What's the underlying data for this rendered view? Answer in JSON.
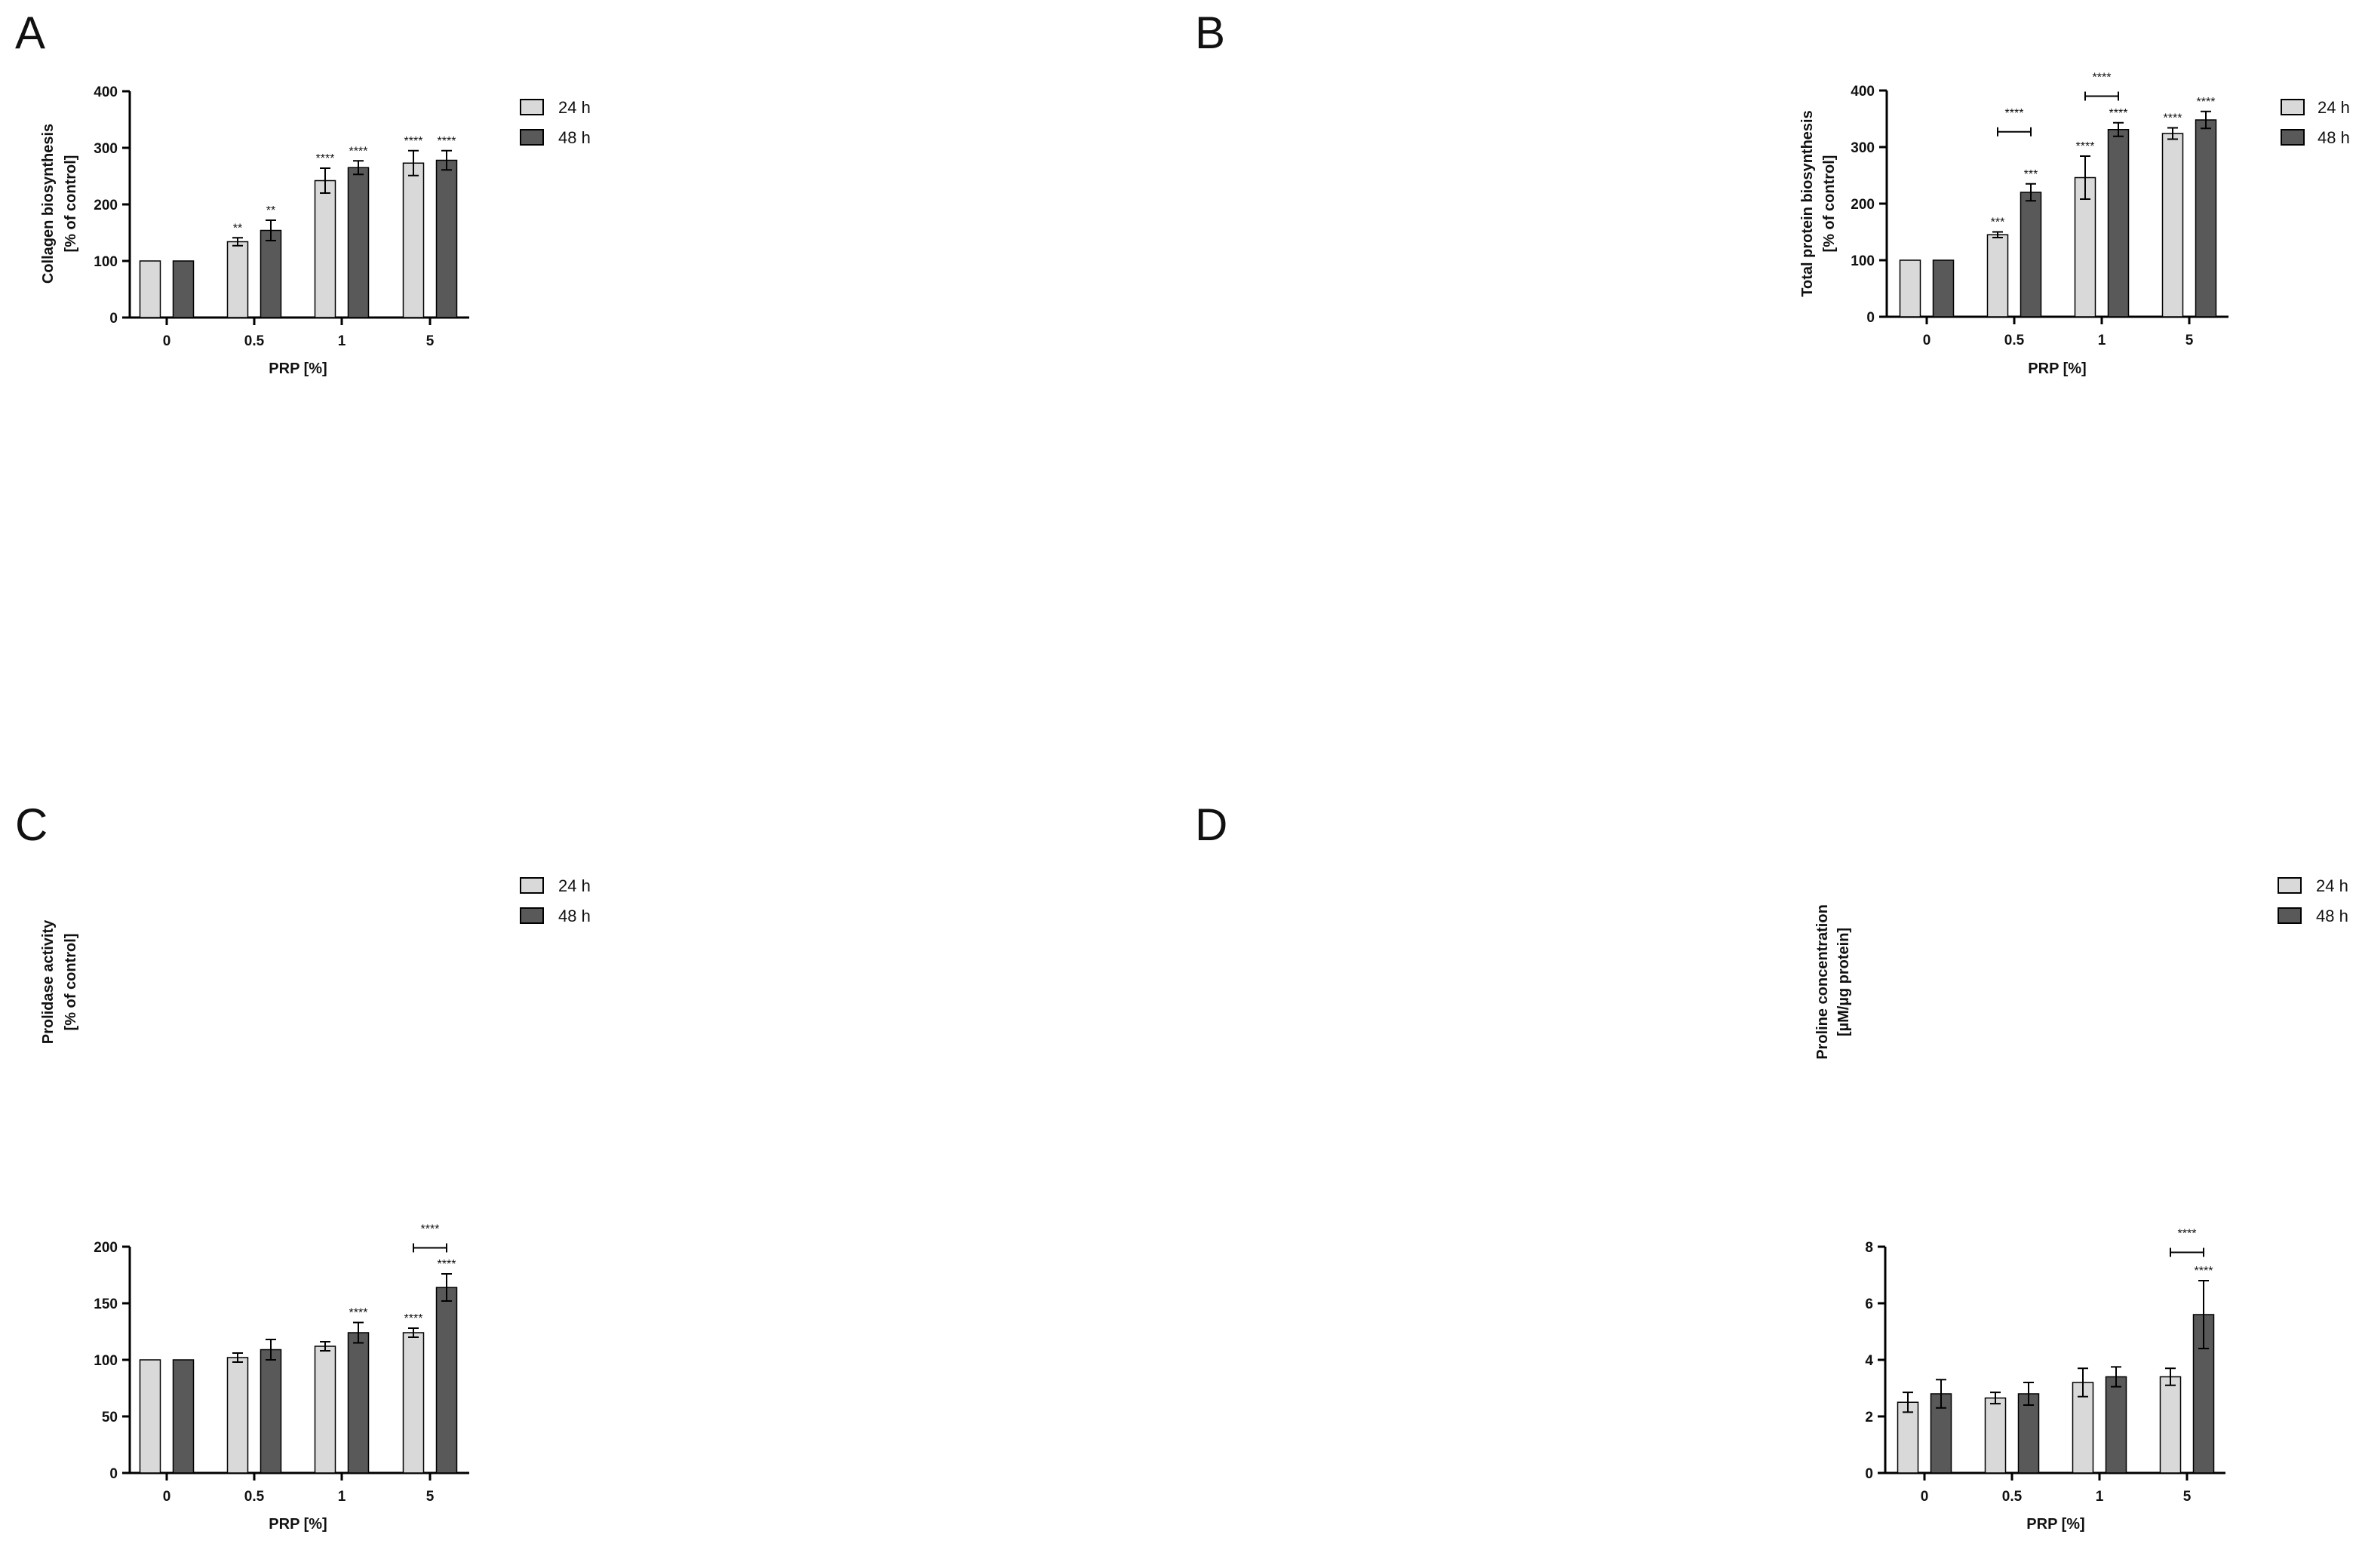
{
  "colors": {
    "h24": "#d9d9d9",
    "h48": "#595959",
    "axis": "#000000"
  },
  "legend": {
    "h24": "24 h",
    "h48": "48 h"
  },
  "chart_data": [
    {
      "panel": "A",
      "type": "bar",
      "title": "",
      "xlabel": "PRP [%]",
      "ylabel_lines": [
        "Collagen biosynthesis",
        "[% of control]"
      ],
      "categories": [
        "0",
        "0.5",
        "1",
        "5"
      ],
      "ylim": [
        0,
        400
      ],
      "yticks": [
        "0",
        "100",
        "200",
        "300",
        "400"
      ],
      "series": [
        {
          "name": "24 h",
          "values": [
            100,
            134,
            242,
            273
          ],
          "errors": [
            0,
            7,
            22,
            22
          ],
          "sig": [
            "",
            "**",
            "****",
            "****"
          ]
        },
        {
          "name": "48 h",
          "values": [
            100,
            154,
            265,
            278
          ],
          "errors": [
            0,
            18,
            12,
            17
          ],
          "sig": [
            "",
            "**",
            "****",
            "****"
          ]
        }
      ],
      "brackets": []
    },
    {
      "panel": "B",
      "type": "bar",
      "title": "",
      "xlabel": "PRP [%]",
      "ylabel_lines": [
        "Total protein biosynthesis",
        "[% of control]"
      ],
      "categories": [
        "0",
        "0.5",
        "1",
        "5"
      ],
      "ylim": [
        0,
        400
      ],
      "yticks": [
        "0",
        "100",
        "200",
        "300",
        "400"
      ],
      "series": [
        {
          "name": "24 h",
          "values": [
            100,
            145,
            246,
            324
          ],
          "errors": [
            0,
            5,
            38,
            10
          ],
          "sig": [
            "",
            "***",
            "****",
            "****"
          ]
        },
        {
          "name": "48 h",
          "values": [
            100,
            220,
            331,
            348
          ],
          "errors": [
            0,
            15,
            12,
            15
          ],
          "sig": [
            "",
            "***",
            "****",
            "****"
          ]
        }
      ],
      "brackets": [
        {
          "category": 1,
          "label": "****",
          "y": 327
        },
        {
          "category": 2,
          "label": "****",
          "y": 390
        }
      ]
    },
    {
      "panel": "C",
      "type": "bar",
      "title": "",
      "xlabel": "PRP [%]",
      "ylabel_lines": [
        "Prolidase activity",
        "[% of control]"
      ],
      "categories": [
        "0",
        "0.5",
        "1",
        "5"
      ],
      "ylim": [
        0,
        200
      ],
      "yticks": [
        "0",
        "50",
        "100",
        "150",
        "200"
      ],
      "series": [
        {
          "name": "24 h",
          "values": [
            100,
            102,
            112,
            124
          ],
          "errors": [
            0,
            4,
            4,
            4
          ],
          "sig": [
            "",
            "",
            "",
            "****"
          ]
        },
        {
          "name": "48 h",
          "values": [
            100,
            109,
            124,
            164
          ],
          "errors": [
            0,
            9,
            9,
            12
          ],
          "sig": [
            "",
            "",
            "****",
            "****"
          ]
        }
      ],
      "brackets": [
        {
          "category": 3,
          "label": "****",
          "y": 199
        }
      ]
    },
    {
      "panel": "D",
      "type": "bar",
      "title": "",
      "xlabel": "PRP [%]",
      "ylabel_lines": [
        "Proline concentration",
        "[µM/µg protein]"
      ],
      "categories": [
        "0",
        "0.5",
        "1",
        "5"
      ],
      "ylim": [
        0,
        8
      ],
      "yticks": [
        "0",
        "2",
        "4",
        "6",
        "8"
      ],
      "series": [
        {
          "name": "24 h",
          "values": [
            2.5,
            2.65,
            3.2,
            3.4
          ],
          "errors": [
            0.35,
            0.2,
            0.5,
            0.3
          ],
          "sig": [
            "",
            "",
            "",
            ""
          ]
        },
        {
          "name": "48 h",
          "values": [
            2.8,
            2.8,
            3.4,
            5.6
          ],
          "errors": [
            0.5,
            0.4,
            0.35,
            1.2
          ],
          "sig": [
            "",
            "",
            "",
            "****"
          ]
        }
      ],
      "brackets": [
        {
          "category": 3,
          "label": "****",
          "y": 7.8
        }
      ]
    }
  ]
}
